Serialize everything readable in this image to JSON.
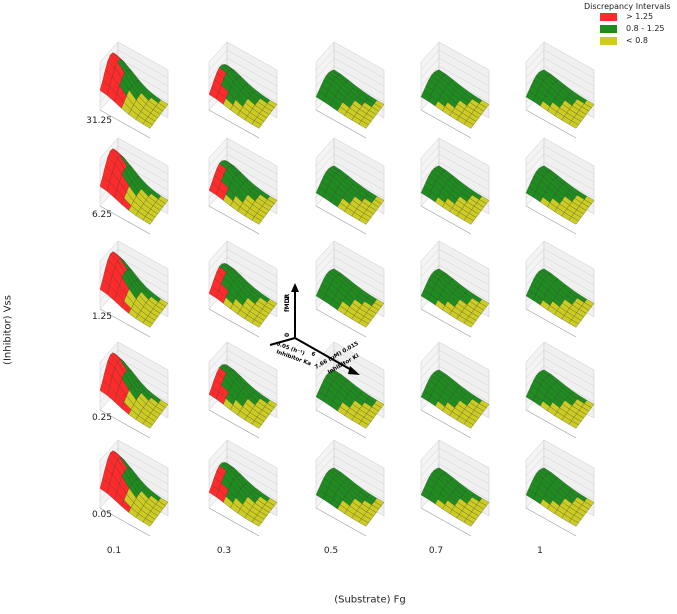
{
  "chart_data": {
    "type": "3d-surface-grid",
    "title": "",
    "xlabel": "(Substrate) Fg",
    "ylabel": "(Inhibitor) Vss",
    "col_values": [
      "0.1",
      "0.3",
      "0.5",
      "0.7",
      "1"
    ],
    "row_values": [
      "31.25",
      "6.25",
      "1.25",
      "0.25",
      "0.05"
    ],
    "legend": {
      "title": "Discrepancy Intervals",
      "items": [
        {
          "label": "> 1.25",
          "color": "#ff2a2a"
        },
        {
          "label": "0.8 - 1.25",
          "color": "#1e8c1e"
        },
        {
          "label": "< 0.8",
          "color": "#cccc22"
        }
      ]
    },
    "inset_axes": {
      "zlabel": "fMDR",
      "z_ticks": [
        "0",
        "2"
      ],
      "ka_label": "Inhibitor Ka",
      "ka_ticks": [
        "0.05 (h⁻¹)",
        "6"
      ],
      "ki_label": "Inhibitor Ki",
      "ki_ticks": [
        "7.66 (µM) 0.015"
      ]
    }
  },
  "colors": {
    "red": "#ff2a2a",
    "green": "#1e8c1e",
    "yellow": "#cccc22",
    "grid": "#c8c8c8"
  }
}
